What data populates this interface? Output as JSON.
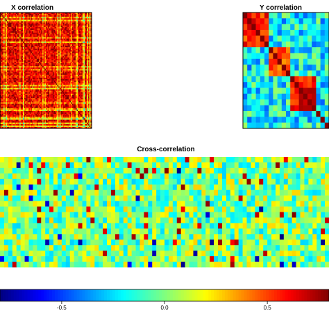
{
  "chart_data": [
    {
      "type": "heatmap",
      "title": "X correlation",
      "n_rows": 80,
      "n_cols": 80,
      "pattern": "symmetric correlation matrix, mostly strong positive values (orange/red) with scattered cyan/yellow stripes; dark red diagonal",
      "value_range": [
        -0.8,
        0.8
      ],
      "diagonal_value": 1.0,
      "typical_value": 0.6
    },
    {
      "type": "heatmap",
      "title": "Y correlation",
      "n_rows": 20,
      "n_cols": 20,
      "pattern": "symmetric matrix with positive diagonal blocks (rows 1-6, 7-11, 12-17) on a light-blue/cyan background; dark red diagonal",
      "blocks": [
        {
          "start": 1,
          "end": 6,
          "value": 0.55
        },
        {
          "start": 7,
          "end": 11,
          "value": 0.45
        },
        {
          "start": 12,
          "end": 17,
          "value": 0.6
        }
      ],
      "value_range": [
        -0.8,
        0.8
      ],
      "diagonal_value": 1.0,
      "background_value": -0.2
    },
    {
      "type": "heatmap",
      "title": "Cross-correlation",
      "n_rows": 20,
      "n_cols": 80,
      "pattern": "mostly near-zero values (cyan/yellow) with isolated strong red and blue cells",
      "value_range": [
        -0.8,
        0.8
      ],
      "typical_value": 0.0
    }
  ],
  "colorbar": {
    "range": [
      -0.8,
      0.8
    ],
    "ticks": [
      {
        "value": -0.5,
        "label": "-0.5"
      },
      {
        "value": 0.0,
        "label": "0.0"
      },
      {
        "value": 0.5,
        "label": "0.5"
      }
    ],
    "colors": [
      "#00007f",
      "#0000ff",
      "#007fff",
      "#00ffff",
      "#7fff7f",
      "#ffff00",
      "#ff7f00",
      "#ff0000",
      "#7f0000"
    ]
  }
}
